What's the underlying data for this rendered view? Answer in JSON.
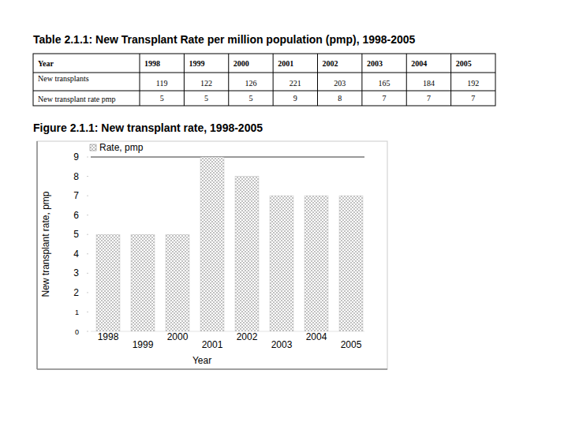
{
  "table": {
    "title": "Table 2.1.1: New Transplant Rate per million population (pmp), 1998-2005",
    "header": [
      "Year",
      "1998",
      "1999",
      "2000",
      "2001",
      "2002",
      "2003",
      "2004",
      "2005"
    ],
    "rows": [
      [
        "New transplants",
        119,
        122,
        126,
        221,
        203,
        165,
        184,
        192
      ],
      [
        "New transplant rate pmp",
        5,
        5,
        5,
        9,
        8,
        7,
        7,
        7
      ]
    ]
  },
  "chart_data": {
    "type": "bar",
    "title": "Figure 2.1.1: New transplant rate, 1998-2005",
    "categories": [
      "1998",
      "1999",
      "2000",
      "2001",
      "2002",
      "2003",
      "2004",
      "2005"
    ],
    "series": [
      {
        "name": "Rate, pmp",
        "color": "#555555",
        "values": [
          5,
          5,
          5,
          9,
          8,
          7,
          7,
          7
        ]
      }
    ],
    "y_label": "New transplant rate, pmp",
    "x_label": "Year",
    "ylim": [
      0,
      9
    ],
    "yticks": [
      0,
      1,
      2,
      3,
      4,
      5,
      6,
      7,
      8,
      9
    ],
    "grid": false,
    "legend": "upper left"
  }
}
